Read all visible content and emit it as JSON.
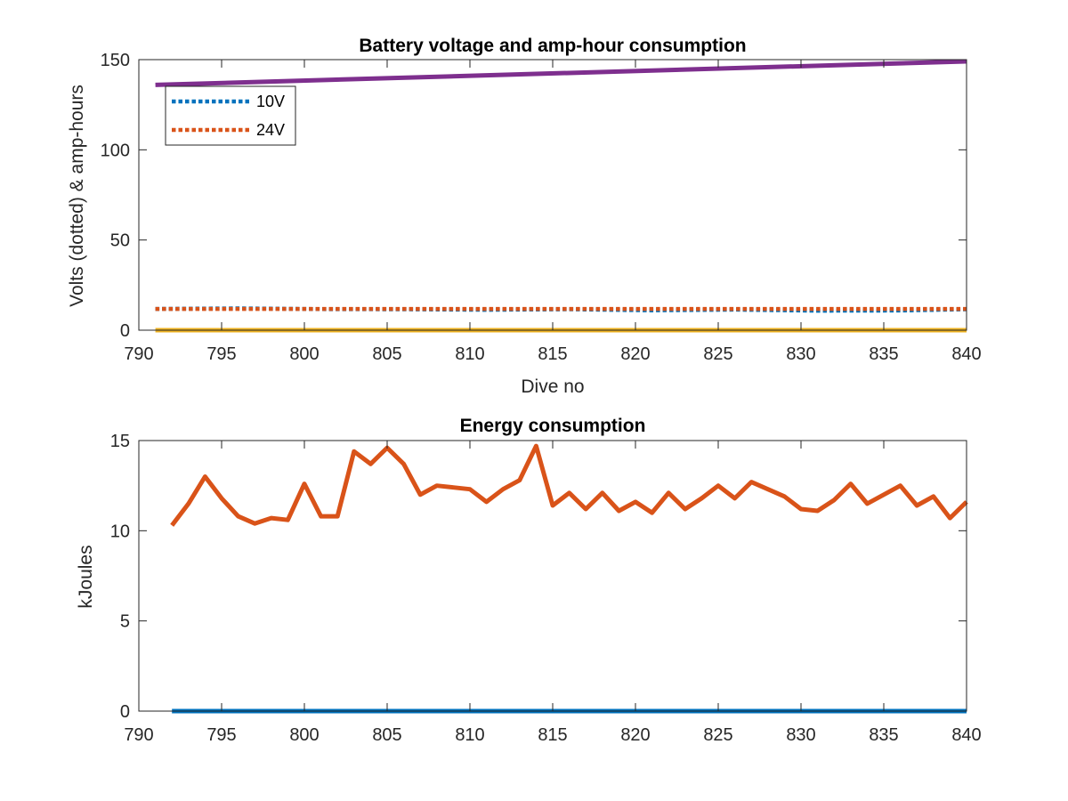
{
  "chart_data": [
    {
      "type": "line",
      "title": "Battery voltage and amp-hour consumption",
      "xlabel": "Dive no",
      "ylabel": "Volts (dotted) & amp-hours",
      "xlim": [
        790,
        840
      ],
      "ylim": [
        0,
        150
      ],
      "xticks": [
        790,
        795,
        800,
        805,
        810,
        815,
        820,
        825,
        830,
        835,
        840
      ],
      "yticks": [
        0,
        50,
        100,
        150
      ],
      "legend_position": "top-left",
      "grid": false,
      "series": [
        {
          "name": "10V",
          "style": "dotted",
          "color": "#0072BD",
          "x": [
            791,
            796,
            801,
            806,
            811,
            816,
            821,
            826,
            831,
            836,
            840
          ],
          "y": [
            11.8,
            12.1,
            11.7,
            11.6,
            11.3,
            11.6,
            11.0,
            11.4,
            10.8,
            10.9,
            11.6
          ]
        },
        {
          "name": "24V",
          "style": "dotted",
          "color": "#D95319",
          "x": [
            791,
            796,
            801,
            806,
            811,
            816,
            821,
            826,
            831,
            836,
            840
          ],
          "y": [
            11.8,
            11.8,
            11.8,
            11.8,
            11.8,
            11.8,
            11.8,
            11.8,
            11.8,
            11.8,
            11.8
          ]
        },
        {
          "style": "solid",
          "color": "#EDB120",
          "x": [
            791,
            840
          ],
          "y": [
            0,
            0
          ]
        },
        {
          "style": "solid",
          "color": "#7E2F8E",
          "x": [
            791,
            840
          ],
          "y": [
            136,
            149
          ]
        }
      ]
    },
    {
      "type": "line",
      "title": "Energy consumption",
      "xlabel": "",
      "ylabel": "kJoules",
      "xlim": [
        790,
        840
      ],
      "ylim": [
        0,
        15
      ],
      "xticks": [
        790,
        795,
        800,
        805,
        810,
        815,
        820,
        825,
        830,
        835,
        840
      ],
      "yticks": [
        0,
        5,
        10,
        15
      ],
      "grid": false,
      "series": [
        {
          "style": "solid",
          "color": "#D95319",
          "x": [
            792,
            793,
            794,
            795,
            796,
            797,
            798,
            799,
            800,
            801,
            802,
            803,
            804,
            805,
            806,
            807,
            808,
            809,
            810,
            811,
            812,
            813,
            814,
            815,
            816,
            817,
            818,
            819,
            820,
            821,
            822,
            823,
            824,
            825,
            826,
            827,
            828,
            829,
            830,
            831,
            832,
            833,
            834,
            835,
            836,
            837,
            838,
            839,
            840
          ],
          "y": [
            10.3,
            11.5,
            13.0,
            11.8,
            10.8,
            10.4,
            10.7,
            10.6,
            12.6,
            10.8,
            10.8,
            14.4,
            13.7,
            14.6,
            13.7,
            12.0,
            12.5,
            12.4,
            12.3,
            11.6,
            12.3,
            12.8,
            14.7,
            11.4,
            12.1,
            11.2,
            12.1,
            11.1,
            11.6,
            11.0,
            12.1,
            11.2,
            11.8,
            12.5,
            11.8,
            12.7,
            12.3,
            11.9,
            11.2,
            11.1,
            11.7,
            12.6,
            11.5,
            12.0,
            12.5,
            11.4,
            11.9,
            10.7,
            11.6
          ]
        },
        {
          "style": "solid",
          "color": "#0072BD",
          "x": [
            792,
            840
          ],
          "y": [
            0,
            0
          ]
        }
      ]
    }
  ]
}
